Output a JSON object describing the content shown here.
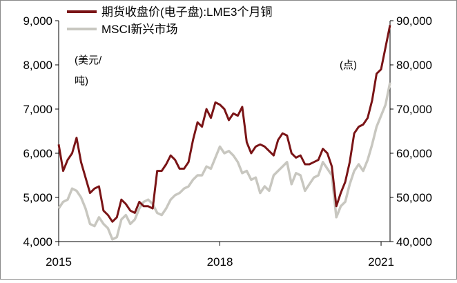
{
  "chart_data": {
    "type": "line",
    "x_ticks": [
      "2015",
      "2018",
      "2021"
    ],
    "x_range": [
      "2015-01",
      "2021-03"
    ],
    "y_left": {
      "min": 4000,
      "max": 9000,
      "ticks": [
        "4,000",
        "5,000",
        "6,000",
        "7,000",
        "8,000",
        "9,000"
      ],
      "unit": "(美元/吨)"
    },
    "y_right": {
      "min": 40000,
      "max": 90000,
      "ticks": [
        "40,000",
        "50,000",
        "60,000",
        "70,000",
        "80,000",
        "90,000"
      ],
      "unit": "(点)"
    },
    "legend_placement": "top-left",
    "grid": false,
    "series": [
      {
        "name": "期货收盘价(电子盘):LME3个月铜",
        "axis": "left",
        "color": "#7a1416",
        "points": [
          [
            "2015-01",
            6200
          ],
          [
            "2015-02",
            5600
          ],
          [
            "2015-03",
            5850
          ],
          [
            "2015-04",
            6000
          ],
          [
            "2015-05",
            6350
          ],
          [
            "2015-06",
            5800
          ],
          [
            "2015-07",
            5450
          ],
          [
            "2015-08",
            5100
          ],
          [
            "2015-09",
            5200
          ],
          [
            "2015-10",
            5250
          ],
          [
            "2015-11",
            4700
          ],
          [
            "2015-12",
            4600
          ],
          [
            "2016-01",
            4450
          ],
          [
            "2016-02",
            4550
          ],
          [
            "2016-03",
            4950
          ],
          [
            "2016-04",
            4850
          ],
          [
            "2016-05",
            4700
          ],
          [
            "2016-06",
            4650
          ],
          [
            "2016-07",
            4900
          ],
          [
            "2016-08",
            4800
          ],
          [
            "2016-09",
            4800
          ],
          [
            "2016-10",
            4750
          ],
          [
            "2016-11",
            5600
          ],
          [
            "2016-12",
            5600
          ],
          [
            "2017-01",
            5750
          ],
          [
            "2017-02",
            5950
          ],
          [
            "2017-03",
            5850
          ],
          [
            "2017-04",
            5650
          ],
          [
            "2017-05",
            5650
          ],
          [
            "2017-06",
            5800
          ],
          [
            "2017-07",
            6300
          ],
          [
            "2017-08",
            6700
          ],
          [
            "2017-09",
            6600
          ],
          [
            "2017-10",
            7000
          ],
          [
            "2017-11",
            6800
          ],
          [
            "2017-12",
            7150
          ],
          [
            "2018-01",
            7100
          ],
          [
            "2018-02",
            7000
          ],
          [
            "2018-03",
            6750
          ],
          [
            "2018-04",
            6900
          ],
          [
            "2018-05",
            6850
          ],
          [
            "2018-06",
            7050
          ],
          [
            "2018-07",
            6250
          ],
          [
            "2018-08",
            6000
          ],
          [
            "2018-09",
            6150
          ],
          [
            "2018-10",
            6200
          ],
          [
            "2018-11",
            6150
          ],
          [
            "2018-12",
            6050
          ],
          [
            "2019-01",
            5950
          ],
          [
            "2019-02",
            6300
          ],
          [
            "2019-03",
            6450
          ],
          [
            "2019-04",
            6400
          ],
          [
            "2019-05",
            6000
          ],
          [
            "2019-06",
            5900
          ],
          [
            "2019-07",
            5950
          ],
          [
            "2019-08",
            5750
          ],
          [
            "2019-09",
            5750
          ],
          [
            "2019-10",
            5800
          ],
          [
            "2019-11",
            5850
          ],
          [
            "2019-12",
            6100
          ],
          [
            "2020-01",
            6000
          ],
          [
            "2020-02",
            5700
          ],
          [
            "2020-03",
            4800
          ],
          [
            "2020-04",
            5100
          ],
          [
            "2020-05",
            5350
          ],
          [
            "2020-06",
            5800
          ],
          [
            "2020-07",
            6450
          ],
          [
            "2020-08",
            6600
          ],
          [
            "2020-09",
            6650
          ],
          [
            "2020-10",
            6800
          ],
          [
            "2020-11",
            7200
          ],
          [
            "2020-12",
            7800
          ],
          [
            "2021-01",
            7900
          ],
          [
            "2021-02",
            8400
          ],
          [
            "2021-03",
            8900
          ]
        ]
      },
      {
        "name": "MSCI新兴市场",
        "axis": "right",
        "color": "#c8c7c0",
        "points": [
          [
            "2015-01",
            47500
          ],
          [
            "2015-02",
            49000
          ],
          [
            "2015-03",
            49500
          ],
          [
            "2015-04",
            52000
          ],
          [
            "2015-05",
            51500
          ],
          [
            "2015-06",
            50000
          ],
          [
            "2015-07",
            47500
          ],
          [
            "2015-08",
            44000
          ],
          [
            "2015-09",
            43500
          ],
          [
            "2015-10",
            45500
          ],
          [
            "2015-11",
            44000
          ],
          [
            "2015-12",
            43000
          ],
          [
            "2016-01",
            40500
          ],
          [
            "2016-02",
            41000
          ],
          [
            "2016-03",
            45000
          ],
          [
            "2016-04",
            46000
          ],
          [
            "2016-05",
            44000
          ],
          [
            "2016-06",
            45000
          ],
          [
            "2016-07",
            47500
          ],
          [
            "2016-08",
            49000
          ],
          [
            "2016-09",
            49500
          ],
          [
            "2016-10",
            48500
          ],
          [
            "2016-11",
            46500
          ],
          [
            "2016-12",
            46000
          ],
          [
            "2017-01",
            47500
          ],
          [
            "2017-02",
            49500
          ],
          [
            "2017-03",
            50500
          ],
          [
            "2017-04",
            51000
          ],
          [
            "2017-05",
            52000
          ],
          [
            "2017-06",
            52500
          ],
          [
            "2017-07",
            54000
          ],
          [
            "2017-08",
            55000
          ],
          [
            "2017-09",
            55000
          ],
          [
            "2017-10",
            57000
          ],
          [
            "2017-11",
            56500
          ],
          [
            "2017-12",
            59000
          ],
          [
            "2018-01",
            61500
          ],
          [
            "2018-02",
            60000
          ],
          [
            "2018-03",
            60500
          ],
          [
            "2018-04",
            59500
          ],
          [
            "2018-05",
            58000
          ],
          [
            "2018-06",
            55500
          ],
          [
            "2018-07",
            56000
          ],
          [
            "2018-08",
            54000
          ],
          [
            "2018-09",
            54500
          ],
          [
            "2018-10",
            51000
          ],
          [
            "2018-11",
            52500
          ],
          [
            "2018-12",
            51500
          ],
          [
            "2019-01",
            55000
          ],
          [
            "2019-02",
            56000
          ],
          [
            "2019-03",
            57000
          ],
          [
            "2019-04",
            58000
          ],
          [
            "2019-05",
            53000
          ],
          [
            "2019-06",
            55500
          ],
          [
            "2019-07",
            55000
          ],
          [
            "2019-08",
            51500
          ],
          [
            "2019-09",
            53000
          ],
          [
            "2019-10",
            54500
          ],
          [
            "2019-11",
            55000
          ],
          [
            "2019-12",
            58000
          ],
          [
            "2020-01",
            56500
          ],
          [
            "2020-02",
            55000
          ],
          [
            "2020-03",
            45500
          ],
          [
            "2020-04",
            48000
          ],
          [
            "2020-05",
            49000
          ],
          [
            "2020-06",
            53000
          ],
          [
            "2020-07",
            56000
          ],
          [
            "2020-08",
            57500
          ],
          [
            "2020-09",
            56000
          ],
          [
            "2020-10",
            58500
          ],
          [
            "2020-11",
            62000
          ],
          [
            "2020-12",
            66000
          ],
          [
            "2021-01",
            68500
          ],
          [
            "2021-02",
            71000
          ],
          [
            "2021-03",
            76000
          ]
        ]
      }
    ]
  }
}
